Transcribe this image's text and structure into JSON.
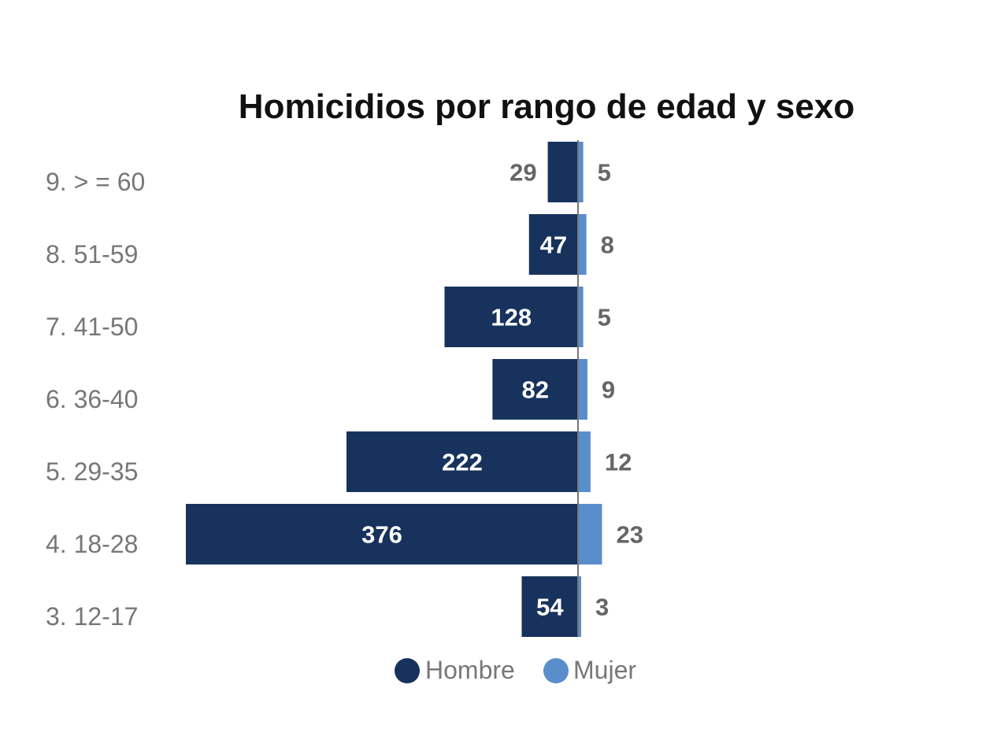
{
  "chart_data": {
    "type": "bar",
    "orientation": "horizontal",
    "stacked": "diverging",
    "title": "Homicidios por rango de edad y sexo",
    "categories": [
      "9. > = 60",
      "8. 51-59",
      "7. 41-50",
      "6. 36-40",
      "5. 29-35",
      "4. 18-28",
      "3. 12-17"
    ],
    "series": [
      {
        "name": "Hombre",
        "color": "#17325c",
        "values": [
          29,
          47,
          128,
          82,
          222,
          376,
          54
        ]
      },
      {
        "name": "Mujer",
        "color": "#5a8dcc",
        "values": [
          5,
          8,
          5,
          9,
          12,
          23,
          3
        ]
      }
    ],
    "grid": false,
    "legend": "bottom-center"
  }
}
